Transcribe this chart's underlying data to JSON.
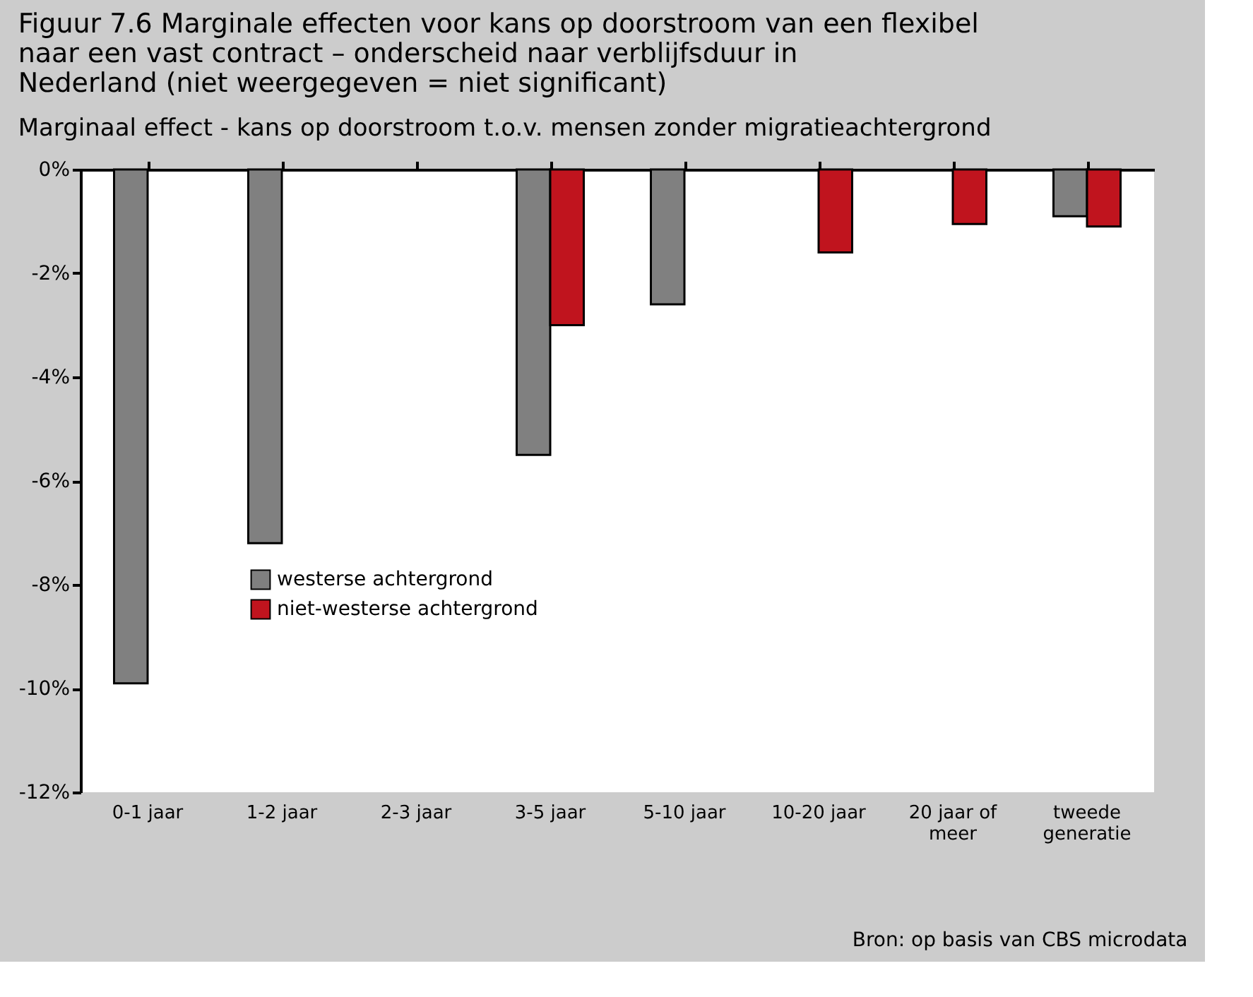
{
  "chart_data": {
    "type": "bar",
    "title": "Figuur 7.6   Marginale effecten voor kans op doorstroom van een flexibel\nnaar een vast contract – onderscheid naar verblijfsduur in\nNederland (niet weergegeven = niet significant)",
    "subtitle": "Marginaal effect  - kans op doorstroom t.o.v. mensen zonder migratieachtergrond",
    "categories": [
      "0-1 jaar",
      "1-2 jaar",
      "2-3 jaar",
      "3-5 jaar",
      "5-10 jaar",
      "10-20 jaar",
      "20 jaar of meer",
      "tweede generatie"
    ],
    "series": [
      {
        "name": "westerse achtergrond",
        "color": "#808080",
        "values": [
          -9.9,
          -7.2,
          null,
          -5.5,
          -2.6,
          null,
          null,
          -0.9
        ]
      },
      {
        "name": "niet-westerse achtergrond",
        "color": "#c0141e",
        "values": [
          null,
          null,
          null,
          -3.0,
          null,
          -1.6,
          -1.05,
          -1.1
        ]
      }
    ],
    "ylim": [
      -12,
      0
    ],
    "yticks": [
      {
        "value": -12,
        "label": "-12%"
      },
      {
        "value": -10,
        "label": "-10%"
      },
      {
        "value": -8,
        "label": "-8%"
      },
      {
        "value": -6,
        "label": "-6%"
      },
      {
        "value": -4,
        "label": "-4%"
      },
      {
        "value": -2,
        "label": "-2%"
      },
      {
        "value": 0,
        "label": "0%"
      }
    ],
    "grid": false,
    "legend": "bottom left",
    "annotations": [
      "Bron: op basis van CBS microdata"
    ]
  }
}
